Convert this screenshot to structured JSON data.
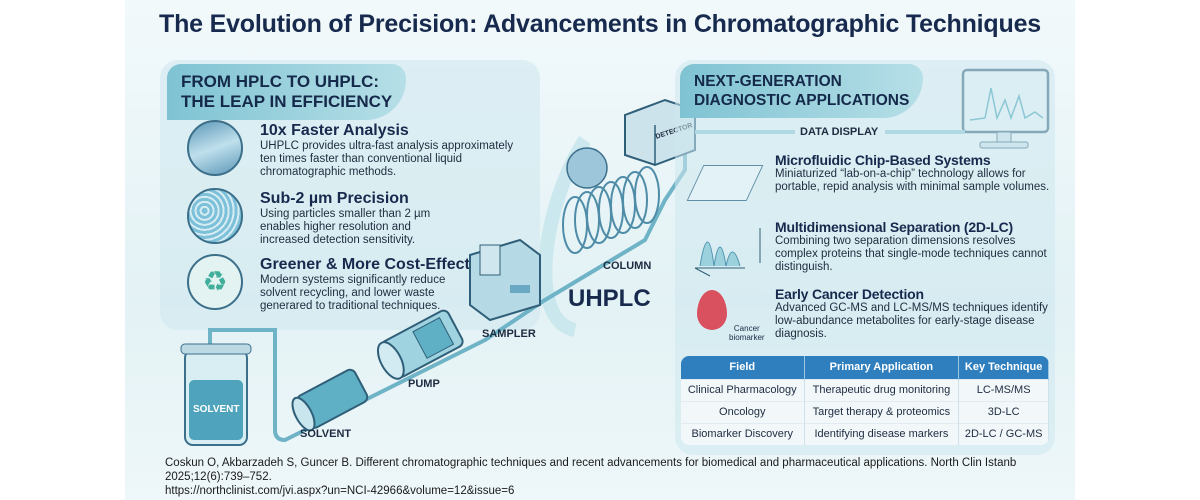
{
  "title": "The Evolution of Precision: Advancements in Chromatographic Techniques",
  "left_panel": {
    "heading_line1": "FROM HPLC TO UHPLC:",
    "heading_line2": "THE LEAP IN EFFICIENCY",
    "items": [
      {
        "title": "10x Faster Analysis",
        "text": "UHPLC provides ultra-fast analysis approximately ten times faster than conventional liquid chromatographic methods."
      },
      {
        "title": "Sub-2 µm Precision",
        "text": "Using particles smaller than 2 µm enables higher resolution and increased detection sensitivity."
      },
      {
        "title": "Greener & More Cost-Effective",
        "text": "Modern systems significantly reduce solvent recycling, and lower waste generared to traditional techniques."
      }
    ]
  },
  "diagram": {
    "bottle_label": "SOLVENT",
    "solvent_label": "SOLVENT",
    "pump_label": "PUMP",
    "sampler_label": "SAMPLER",
    "column_label": "COLUMN",
    "detector_label": "DETECTOR",
    "system_label": "UHPLC",
    "data_display_label": "DATA DISPLAY"
  },
  "right_panel": {
    "heading_line1": "NEXT-GENERATION",
    "heading_line2": "DIAGNOSTIC APPLICATIONS",
    "items": [
      {
        "title": "Microfluidic Chip-Based Systems",
        "text": "Miniaturized “lab-on-a-chip” technology allows for portable, repid analysis with minimal sample volumes."
      },
      {
        "title": "Multidimensional Separation (2D-LC)",
        "text": "Combining two separation dimensions resolves complex proteins that single-mode techniques cannot distinguish."
      },
      {
        "title": "Early Cancer Detection",
        "text": "Advanced GC-MS and LC-MS/MS techniques identify low-abundance metabolites for early-stage disease diagnosis."
      }
    ],
    "cancer_icon_label_1": "Cancer",
    "cancer_icon_label_2": "biomarker",
    "table": {
      "headers": [
        "Field",
        "Primary Application",
        "Key Technique"
      ],
      "rows": [
        [
          "Clinical Pharmacology",
          "Therapeutic drug monitoring",
          "LC-MS/MS"
        ],
        [
          "Oncology",
          "Target therapy & proteomics",
          "3D-LC"
        ],
        [
          "Biomarker Discovery",
          "Identifying disease markers",
          "2D-LC / GC-MS"
        ]
      ]
    }
  },
  "footer": {
    "citation": "Coskun O, Akbarzadeh S, Guncer B. Different chromatographic techniques and recent advancements for biomedical and pharmaceutical applications. North Clin Istanb 2025;12(6):739–752.",
    "url": "https://northclinist.com/jvi.aspx?un=NCI-42966&volume=12&issue=6"
  },
  "colors": {
    "accent": "#2f7fbf",
    "title": "#172a4e",
    "teal": "#7fc3d3"
  }
}
